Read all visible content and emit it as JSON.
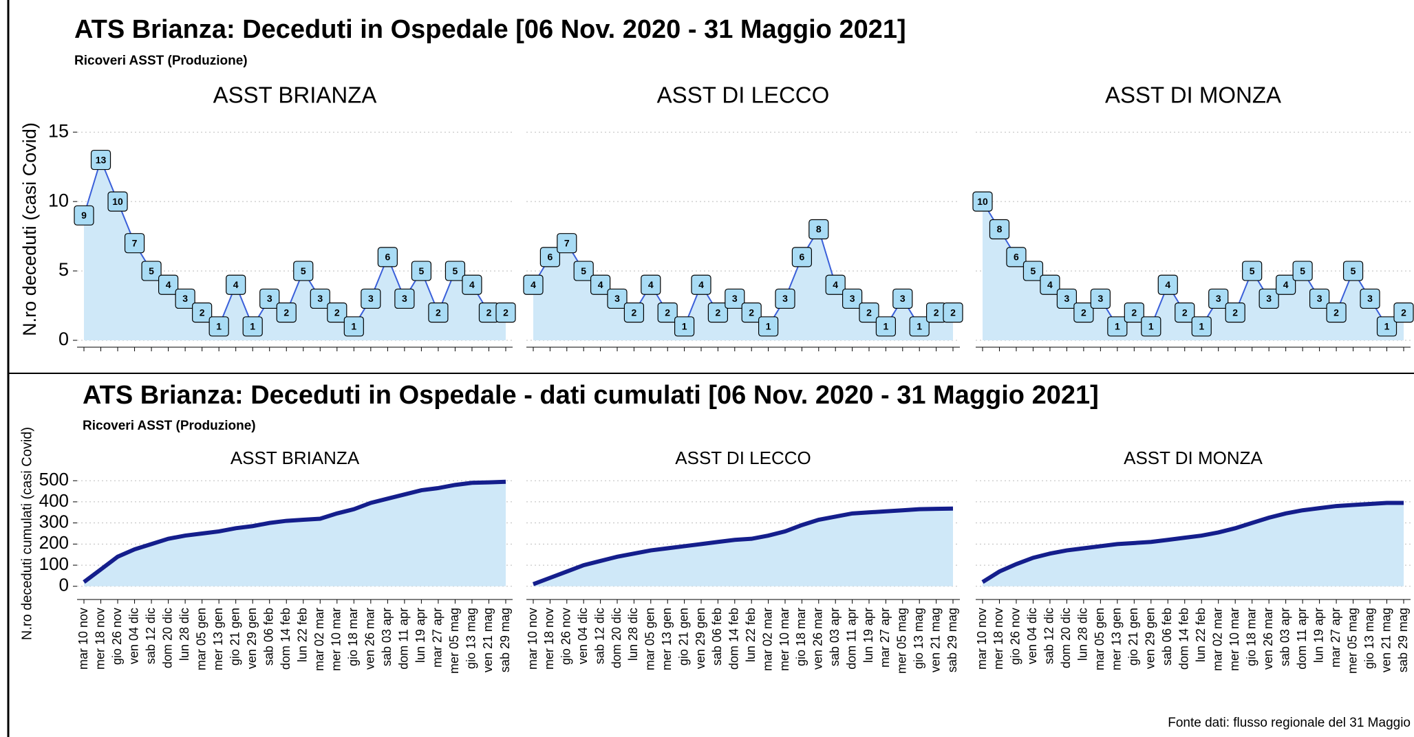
{
  "chart_data": [
    {
      "type": "line",
      "title": "ATS Brianza: Deceduti in Ospedale [06 Nov. 2020 - 31 Maggio 2021]",
      "subtitle": "Ricoveri ASST (Produzione)",
      "ylabel": "N.ro deceduti (casi Covid)",
      "ylim": [
        0,
        16
      ],
      "yticks": [
        0,
        5,
        10,
        15
      ],
      "grid": true,
      "color": "#3a5fd9",
      "fill": "#cfe8f8",
      "data_labels": true,
      "facets": [
        {
          "title": "ASST BRIANZA",
          "values": [
            9,
            13,
            10,
            7,
            5,
            4,
            3,
            2,
            1,
            4,
            1,
            3,
            2,
            5,
            3,
            2,
            1,
            3,
            6,
            3,
            5,
            2,
            5,
            4,
            2,
            2
          ]
        },
        {
          "title": "ASST DI LECCO",
          "values": [
            4,
            6,
            7,
            5,
            4,
            3,
            2,
            4,
            2,
            1,
            4,
            2,
            3,
            2,
            1,
            3,
            6,
            8,
            4,
            3,
            2,
            1,
            3,
            1,
            2,
            2
          ]
        },
        {
          "title": "ASST DI MONZA",
          "values": [
            10,
            8,
            6,
            5,
            4,
            3,
            2,
            3,
            1,
            2,
            1,
            4,
            2,
            1,
            3,
            2,
            5,
            3,
            4,
            5,
            3,
            2,
            5,
            3,
            1,
            2
          ]
        }
      ]
    },
    {
      "type": "line",
      "title": "ATS Brianza: Deceduti in Ospedale - dati cumulati [06 Nov. 2020 - 31 Maggio 2021]",
      "subtitle": "Ricoveri ASST (Produzione)",
      "ylabel": "N.ro deceduti cumulati (casi Covid)",
      "ylim": [
        -30,
        530
      ],
      "yticks": [
        0,
        100,
        200,
        300,
        400,
        500
      ],
      "grid": true,
      "color": "#141e8c",
      "fill": "#cfe8f8",
      "data_labels": false,
      "categories": [
        "mar 10 nov",
        "mer 18 nov",
        "gio 26 nov",
        "ven 04 dic",
        "sab 12 dic",
        "dom 20 dic",
        "lun 28 dic",
        "mar 05 gen",
        "mer 13 gen",
        "gio 21 gen",
        "ven 29 gen",
        "sab 06 feb",
        "dom 14 feb",
        "lun 22 feb",
        "mar 02 mar",
        "mer 10 mar",
        "gio 18 mar",
        "ven 26 mar",
        "sab 03 apr",
        "dom 11 apr",
        "lun 19 apr",
        "mar 27 apr",
        "mer 05 mag",
        "gio 13 mag",
        "ven 21 mag",
        "sab 29 mag"
      ],
      "facets": [
        {
          "title": "ASST BRIANZA",
          "values": [
            20,
            80,
            140,
            175,
            200,
            225,
            240,
            250,
            260,
            275,
            285,
            300,
            310,
            315,
            320,
            345,
            365,
            395,
            415,
            435,
            455,
            465,
            480,
            490,
            492,
            495
          ]
        },
        {
          "title": "ASST DI LECCO",
          "values": [
            10,
            40,
            70,
            100,
            120,
            140,
            155,
            170,
            180,
            190,
            200,
            210,
            220,
            225,
            240,
            260,
            290,
            315,
            330,
            345,
            350,
            355,
            360,
            365,
            367,
            368
          ]
        },
        {
          "title": "ASST DI MONZA",
          "values": [
            20,
            70,
            105,
            135,
            155,
            170,
            180,
            190,
            200,
            205,
            210,
            220,
            230,
            240,
            255,
            275,
            300,
            325,
            345,
            360,
            370,
            380,
            385,
            390,
            395,
            395
          ]
        }
      ]
    }
  ],
  "source": "Fonte dati: flusso regionale del 31 Maggio"
}
